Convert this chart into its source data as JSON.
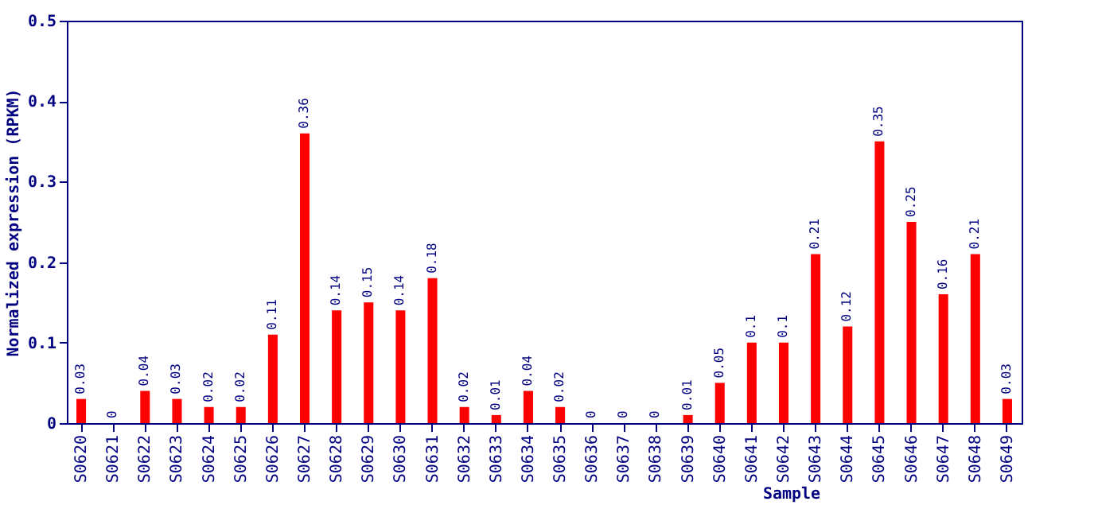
{
  "chart_data": {
    "type": "bar",
    "xlabel": "Sample",
    "ylabel": "Normalized expression (RPKM)",
    "categories": [
      "S0620",
      "S0621",
      "S0622",
      "S0623",
      "S0624",
      "S0625",
      "S0626",
      "S0627",
      "S0628",
      "S0629",
      "S0630",
      "S0631",
      "S0632",
      "S0633",
      "S0634",
      "S0635",
      "S0636",
      "S0637",
      "S0638",
      "S0639",
      "S0640",
      "S0641",
      "S0642",
      "S0643",
      "S0644",
      "S0645",
      "S0646",
      "S0647",
      "S0648",
      "S0649"
    ],
    "values": [
      0.03,
      0,
      0.04,
      0.03,
      0.02,
      0.02,
      0.11,
      0.36,
      0.14,
      0.15,
      0.14,
      0.18,
      0.02,
      0.01,
      0.04,
      0.02,
      0,
      0,
      0,
      0.01,
      0.05,
      0.1,
      0.1,
      0.21,
      0.12,
      0.35,
      0.25,
      0.16,
      0.21,
      0.03
    ],
    "color": "#ff0000",
    "ylim": [
      0,
      0.5
    ],
    "yticks": [
      0,
      0.1,
      0.2,
      0.3,
      0.4,
      0.5
    ],
    "grid": false,
    "data_labels": true
  }
}
